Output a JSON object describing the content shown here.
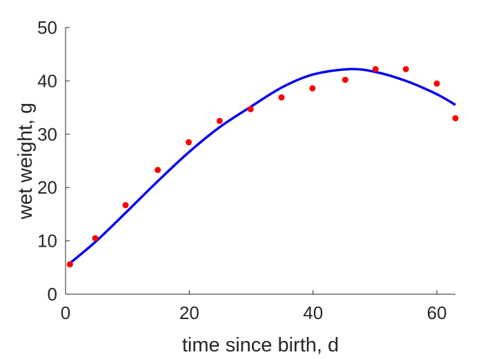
{
  "chart_data": {
    "type": "scatter",
    "xlabel": "time since birth, d",
    "ylabel": "wet weight, g",
    "xlim": [
      0,
      63
    ],
    "ylim": [
      0,
      50
    ],
    "xticks": [
      0,
      20,
      40,
      60
    ],
    "yticks": [
      0,
      10,
      20,
      30,
      40,
      50
    ],
    "grid": false,
    "legend": "none",
    "series": [
      {
        "kind": "scatter",
        "color": "#ff0000",
        "x": [
          0.7,
          4.8,
          9.7,
          14.9,
          19.9,
          24.9,
          29.9,
          34.9,
          39.9,
          45.2,
          50.1,
          55.0,
          60.0,
          63.0
        ],
        "y": [
          5.6,
          10.5,
          16.7,
          23.3,
          28.5,
          32.5,
          34.7,
          36.9,
          38.6,
          40.2,
          42.2,
          42.2,
          39.5,
          33.0
        ]
      },
      {
        "kind": "line",
        "color": "#0000ee",
        "x": [
          0.7,
          5,
          10,
          15,
          20,
          25,
          30,
          35,
          40,
          45.8,
          50,
          55,
          60,
          63
        ],
        "y": [
          5.8,
          10.0,
          15.6,
          21.3,
          26.7,
          31.4,
          35.2,
          38.8,
          41.2,
          42.2,
          41.7,
          40.0,
          37.5,
          35.5
        ]
      }
    ]
  }
}
